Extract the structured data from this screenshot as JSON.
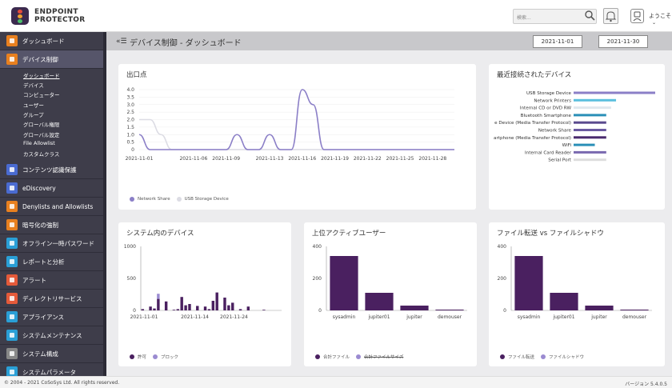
{
  "brand": {
    "line1": "ENDPOINT",
    "line2": "PROTECTOR"
  },
  "header": {
    "search_placeholder": "検索...",
    "username": "ようこそ"
  },
  "sidebar": {
    "items": [
      {
        "label": "ダッシュボード",
        "color": "#e8801f"
      },
      {
        "label": "デバイス制御",
        "color": "#e8801f"
      },
      {
        "label": "コンテンツ認識保護",
        "color": "#4a6bd1"
      },
      {
        "label": "eDiscovery",
        "color": "#4a6bd1"
      },
      {
        "label": "Denylists and Allowlists",
        "color": "#e8801f"
      },
      {
        "label": "暗号化の強制",
        "color": "#e8801f"
      },
      {
        "label": "オフライン一時パスワード",
        "color": "#2a9fd6"
      },
      {
        "label": "レポートと分析",
        "color": "#2a9fd6"
      },
      {
        "label": "アラート",
        "color": "#e55a3a"
      },
      {
        "label": "ディレクトリサービス",
        "color": "#e55a3a"
      },
      {
        "label": "アプライアンス",
        "color": "#2a9fd6"
      },
      {
        "label": "システムメンテナンス",
        "color": "#2a9fd6"
      },
      {
        "label": "システム構成",
        "color": "#888888"
      },
      {
        "label": "システムパラメータ",
        "color": "#2a9fd6"
      }
    ],
    "subitems": [
      "ダッシュボード",
      "デバイス",
      "コンピューター",
      "ユーザー",
      "グループ",
      "グローバル権限",
      "グローバル設定",
      "File Allowlist",
      "カスタムクラス"
    ]
  },
  "page": {
    "title": "デバイス制御 - ダッシュボード",
    "date_from": "2021-11-01",
    "date_to": "2021-11-30"
  },
  "charts": {
    "exit_points": {
      "title": "出口点",
      "chart_data": {
        "type": "line",
        "x": [
          "2021-11-01",
          "2021-11-02",
          "2021-11-03",
          "2021-11-04",
          "2021-11-05",
          "2021-11-06",
          "2021-11-07",
          "2021-11-08",
          "2021-11-09",
          "2021-11-10",
          "2021-11-11",
          "2021-11-12",
          "2021-11-13",
          "2021-11-14",
          "2021-11-15",
          "2021-11-16",
          "2021-11-17",
          "2021-11-18",
          "2021-11-19",
          "2021-11-20",
          "2021-11-21",
          "2021-11-22",
          "2021-11-23",
          "2021-11-24",
          "2021-11-25",
          "2021-11-26",
          "2021-11-27",
          "2021-11-28",
          "2021-11-29",
          "2021-11-30"
        ],
        "tick_labels": [
          "2021-11-01",
          "2021-11-06",
          "2021-11-09",
          "2021-11-13",
          "2021-11-16",
          "2021-11-19",
          "2021-11-22",
          "2021-11-25",
          "2021-11-28"
        ],
        "series": [
          {
            "name": "Network Share",
            "color": "#8b7fc7",
            "values": [
              1,
              0,
              0,
              0,
              0,
              0,
              0,
              0,
              0,
              1,
              0,
              0,
              1,
              0,
              0,
              4,
              3,
              0,
              0,
              0,
              0,
              0,
              0,
              0,
              0,
              0,
              0,
              0,
              0,
              0
            ]
          },
          {
            "name": "USB Storage Device",
            "color": "#dcdce4",
            "values": [
              2,
              2,
              1,
              0,
              0,
              0,
              0,
              0,
              0,
              0,
              0,
              0,
              0,
              0,
              0,
              0,
              0,
              0,
              0,
              0,
              0,
              0,
              0,
              0,
              0,
              0,
              0,
              0,
              0,
              0
            ]
          }
        ],
        "ylim": [
          0,
          4
        ],
        "yticks": [
          "0",
          "0.5",
          "1.0",
          "1.5",
          "2.0",
          "2.5",
          "3.0",
          "3.5",
          "4.0"
        ]
      }
    },
    "recent_devices": {
      "title": "最近接続されたデバイス",
      "chart_data": {
        "type": "bar",
        "orientation": "horizontal",
        "categories": [
          "USB Storage Device",
          "Network Printers",
          "Internal CD or DVD RW",
          "Bluetooth Smartphone",
          "e Device (Media Transfer Protocol)",
          "Network Share",
          "artphone (Media Transfer Protocol)",
          "WiFi",
          "Internal Card Reader",
          "Serial Port"
        ],
        "values": [
          100,
          52,
          46,
          40,
          40,
          40,
          40,
          26,
          40,
          40
        ],
        "colors": [
          "#8b7fc7",
          "#5bc0de",
          "#e0e8ee",
          "#2a8fb7",
          "#5a4a8e",
          "#6a5aa0",
          "#4a2a6e",
          "#2a8fb7",
          "#7a6ab0",
          "#dddddd"
        ]
      }
    },
    "system_devices": {
      "title": "システム内のデバイス",
      "chart_data": {
        "type": "bar",
        "stacked": true,
        "tick_labels": [
          "2021-11-01",
          "2021-11-14",
          "2021-11-24"
        ],
        "yticks": [
          "0",
          "500",
          "1000"
        ],
        "ylim": [
          0,
          1000
        ],
        "series": [
          {
            "name": "許可",
            "color": "#4a2060",
            "values": [
              20,
              0,
              60,
              30,
              180,
              0,
              140,
              0,
              10,
              20,
              210,
              80,
              100,
              0,
              70,
              0,
              60,
              20,
              150,
              280,
              0,
              200,
              80,
              120,
              0,
              20,
              0,
              60,
              0,
              0,
              0,
              10,
              0,
              0,
              0,
              0
            ]
          },
          {
            "name": "ブロック",
            "color": "#9b8bd1",
            "values": [
              0,
              0,
              0,
              0,
              80,
              0,
              0,
              0,
              0,
              0,
              0,
              0,
              0,
              0,
              0,
              0,
              0,
              0,
              0,
              0,
              0,
              0,
              0,
              0,
              0,
              0,
              0,
              0,
              0,
              0,
              0,
              0,
              0,
              0,
              0,
              0
            ]
          }
        ]
      }
    },
    "top_users": {
      "title": "上位アクティブユーザー",
      "chart_data": {
        "type": "bar",
        "categories": [
          "sysadmin",
          "jupiter01",
          "jupiter",
          "demouser"
        ],
        "yticks": [
          "0",
          "200",
          "400"
        ],
        "ylim": [
          0,
          400
        ],
        "series": [
          {
            "name": "合計ファイル",
            "color": "#4a2060",
            "values": [
              340,
              110,
              30,
              5
            ]
          },
          {
            "name": "合計ファイルサイズ",
            "color": "#9b8bd1",
            "values": [
              0,
              0,
              0,
              0
            ]
          }
        ]
      }
    },
    "file_transfer": {
      "title": "ファイル転送 vs ファイルシャドウ",
      "chart_data": {
        "type": "bar",
        "categories": [
          "sysadmin",
          "jupiter01",
          "jupiter",
          "demouser"
        ],
        "yticks": [
          "0",
          "200",
          "400"
        ],
        "ylim": [
          0,
          400
        ],
        "series": [
          {
            "name": "ファイル転送",
            "color": "#4a2060",
            "values": [
              340,
              110,
              30,
              5
            ]
          },
          {
            "name": "ファイルシャドウ",
            "color": "#9b8bd1",
            "values": [
              0,
              0,
              0,
              0
            ]
          }
        ]
      }
    }
  },
  "footer": {
    "copyright": "© 2004 - 2021 CoSoSys Ltd. All rights reserved.",
    "version": "バージョン 5.4.0.5"
  }
}
